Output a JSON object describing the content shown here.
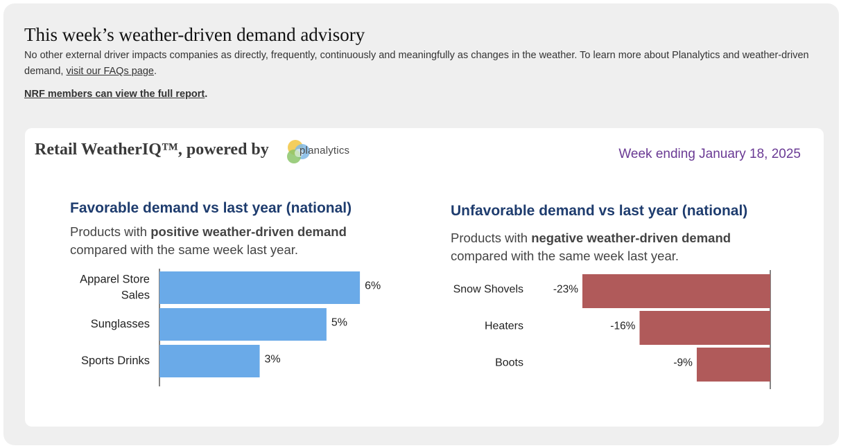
{
  "header": {
    "title": "This week’s weather-driven demand advisory",
    "intro_text": "No other external driver impacts companies as directly, frequently, continuously and meaningfully as changes in the weather. To learn more about Planalytics and weather-driven demand, ",
    "faq_link": "visit our FAQs page",
    "intro_end": ".",
    "members_link": "NRF members can view the full report",
    "members_end": "."
  },
  "card": {
    "brand": "Retail WeatherIQ™, powered by",
    "logo_text": "planalytics",
    "week": "Week ending January 18, 2025"
  },
  "favorable": {
    "title": "Favorable demand vs last year (national)",
    "sub_prefix": "Products with ",
    "sub_bold": "positive weather-driven demand",
    "sub_suffix": "compared with the same week last year."
  },
  "unfavorable": {
    "title": "Unfavorable demand vs last year (national)",
    "sub_prefix": "Products with ",
    "sub_bold": "negative weather-driven demand",
    "sub_suffix": "compared with the same week last year."
  },
  "colors": {
    "positive": "#6aaae8",
    "negative": "#b05a5a",
    "title": "#1e3c6e",
    "week": "#6a3a94"
  },
  "chart_data": [
    {
      "type": "bar",
      "orientation": "horizontal",
      "categories": [
        [
          "Apparel Store",
          "Sales"
        ],
        [
          "Sunglasses"
        ],
        [
          "Sports Drinks"
        ]
      ],
      "values": [
        6,
        5,
        3
      ],
      "labels": [
        "6%",
        "5%",
        "3%"
      ],
      "xlim": [
        0,
        6.6
      ]
    },
    {
      "type": "bar",
      "orientation": "horizontal",
      "categories": [
        [
          "Snow Shovels"
        ],
        [
          "Heaters"
        ],
        [
          "Boots"
        ]
      ],
      "values": [
        -23,
        -16,
        -9
      ],
      "labels": [
        "-23%",
        "-16%",
        "-9%"
      ],
      "xlim": [
        -23,
        0
      ]
    }
  ]
}
